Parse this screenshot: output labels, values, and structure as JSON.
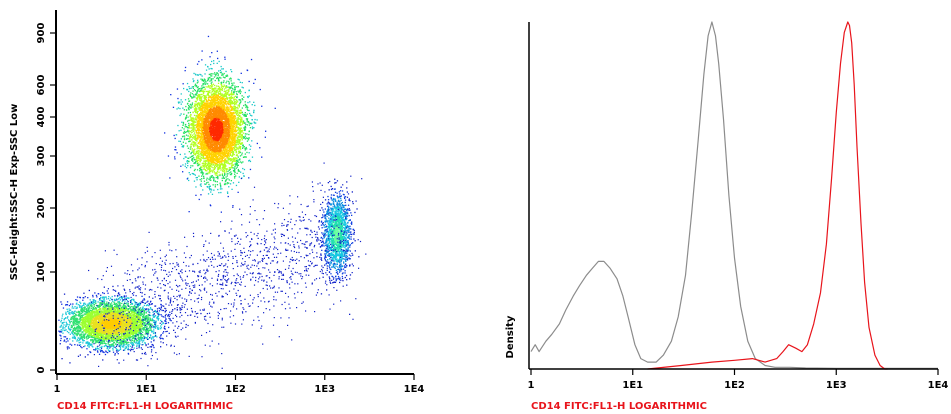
{
  "chart_data": [
    {
      "type": "scatter",
      "subtype": "density-dot-plot",
      "title": "",
      "xlabel": "CD14 FITC:FL1-H LOGARITHMIC",
      "ylabel": "SSC-Height:SSC-H Exp-SSC Low",
      "x_scale": "log",
      "xlim": [
        1,
        10000
      ],
      "x_ticks": [
        {
          "value": 1,
          "label": "1"
        },
        {
          "value": 10,
          "label": "1E1"
        },
        {
          "value": 100,
          "label": "1E2"
        },
        {
          "value": 1000,
          "label": "1E3"
        },
        {
          "value": 10000,
          "label": "1E4"
        }
      ],
      "y_scale": "logicle",
      "ylim": [
        0,
        1023
      ],
      "y_ticks": [
        {
          "value": 0,
          "label": "0"
        },
        {
          "value": 100,
          "label": "100"
        },
        {
          "value": 200,
          "label": "200"
        },
        {
          "value": 300,
          "label": "300"
        },
        {
          "value": 400,
          "label": "400"
        },
        {
          "value": 600,
          "label": "600"
        },
        {
          "value": 900,
          "label": "900"
        }
      ],
      "xlabel_color": "#e8141b",
      "populations": [
        {
          "x_center": 60,
          "y_center": 370
        },
        {
          "x_center": 4,
          "y_center": 48
        },
        {
          "x_center": 1350,
          "y_center": 160
        }
      ],
      "grid": false
    },
    {
      "type": "line",
      "subtype": "histogram-overlay",
      "title": "",
      "xlabel": "CD14 FITC:FL1-H LOGARITHMIC",
      "ylabel": "Density",
      "x_scale": "log",
      "xlim": [
        1,
        10000
      ],
      "x_ticks": [
        {
          "value": 1,
          "label": "1"
        },
        {
          "value": 10,
          "label": "1E1"
        },
        {
          "value": 100,
          "label": "1E2"
        },
        {
          "value": 1000,
          "label": "1E3"
        },
        {
          "value": 10000,
          "label": "1E4"
        }
      ],
      "ylim": [
        0,
        1
      ],
      "xlabel_color": "#e8141b",
      "grid": false,
      "series": [
        {
          "color": "#8c8c8c",
          "x": [
            1,
            1.1,
            1.2,
            1.4,
            1.6,
            1.9,
            2.2,
            2.6,
            3.0,
            3.5,
            4.0,
            4.6,
            5.2,
            6.0,
            7.0,
            8.0,
            9.0,
            10.5,
            12,
            14,
            17,
            20,
            24,
            28,
            33,
            38,
            44,
            50,
            55,
            60,
            65,
            70,
            78,
            88,
            100,
            115,
            135,
            160,
            200,
            250,
            350,
            500,
            1000,
            10000
          ],
          "values": [
            0.05,
            0.07,
            0.05,
            0.08,
            0.1,
            0.13,
            0.17,
            0.21,
            0.24,
            0.27,
            0.29,
            0.31,
            0.31,
            0.29,
            0.26,
            0.21,
            0.15,
            0.07,
            0.03,
            0.02,
            0.02,
            0.04,
            0.08,
            0.15,
            0.27,
            0.45,
            0.66,
            0.85,
            0.96,
            1.0,
            0.96,
            0.88,
            0.72,
            0.5,
            0.32,
            0.18,
            0.08,
            0.03,
            0.01,
            0.005,
            0.005,
            0.003,
            0.002,
            0.002
          ]
        },
        {
          "color": "#e8141b",
          "x": [
            14,
            30,
            60,
            100,
            150,
            200,
            260,
            300,
            340,
            400,
            460,
            520,
            600,
            700,
            800,
            900,
            1000,
            1100,
            1200,
            1300,
            1350,
            1420,
            1500,
            1600,
            1750,
            1900,
            2100,
            2400,
            2700,
            3000,
            3200
          ],
          "values": [
            0.0,
            0.01,
            0.02,
            0.025,
            0.03,
            0.02,
            0.03,
            0.05,
            0.07,
            0.06,
            0.05,
            0.07,
            0.13,
            0.22,
            0.36,
            0.55,
            0.74,
            0.88,
            0.97,
            1.0,
            0.99,
            0.94,
            0.82,
            0.64,
            0.42,
            0.25,
            0.12,
            0.04,
            0.01,
            0.0,
            0.0
          ]
        }
      ]
    }
  ]
}
